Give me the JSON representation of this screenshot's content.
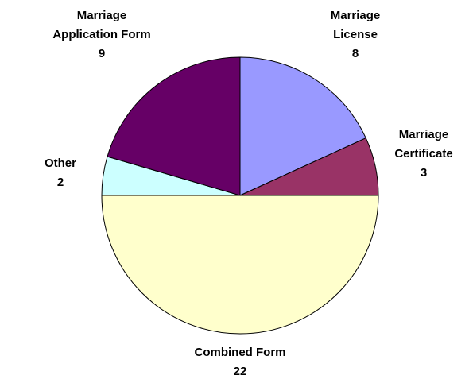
{
  "chart_data": {
    "type": "pie",
    "categories": [
      "Marriage License",
      "Marriage Certificate",
      "Combined Form",
      "Other",
      "Marriage Application Form"
    ],
    "values": [
      8,
      3,
      22,
      2,
      9
    ],
    "colors": [
      "#9999ff",
      "#993366",
      "#ffffcc",
      "#ccffff",
      "#660066"
    ]
  }
}
